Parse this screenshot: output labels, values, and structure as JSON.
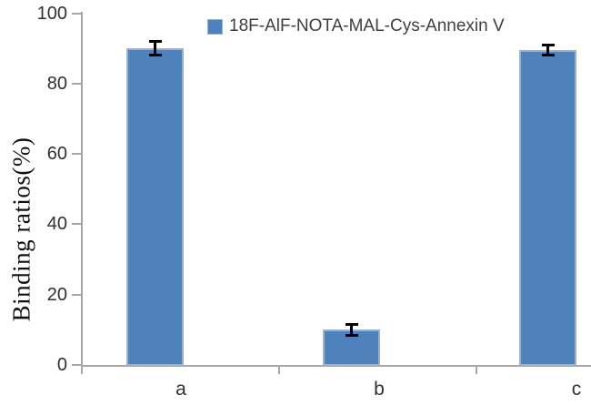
{
  "chart_data": {
    "type": "bar",
    "categories": [
      "a",
      "b",
      "c"
    ],
    "values": [
      90,
      10,
      89.5
    ],
    "errors": [
      2,
      1.5,
      1.5
    ],
    "series_name": "18F-AlF-NOTA-MAL-Cys-Annexin V",
    "legend": "18F-AlF-NOTA-MAL-Cys-Annexin V",
    "title": "",
    "xlabel": "",
    "ylabel": "Binding ratios(%)",
    "ylim": [
      0,
      100
    ],
    "yticks": [
      0,
      20,
      40,
      60,
      80,
      100
    ],
    "grid": "off",
    "legend_position": "top",
    "bar_color": "#4F81BD",
    "bar_border_color": "#95B3D7",
    "error_bar_color": "#000000",
    "axis_color": "#A6A6A6",
    "tick_label_color": "#303030",
    "legend_text_color": "#404040"
  }
}
